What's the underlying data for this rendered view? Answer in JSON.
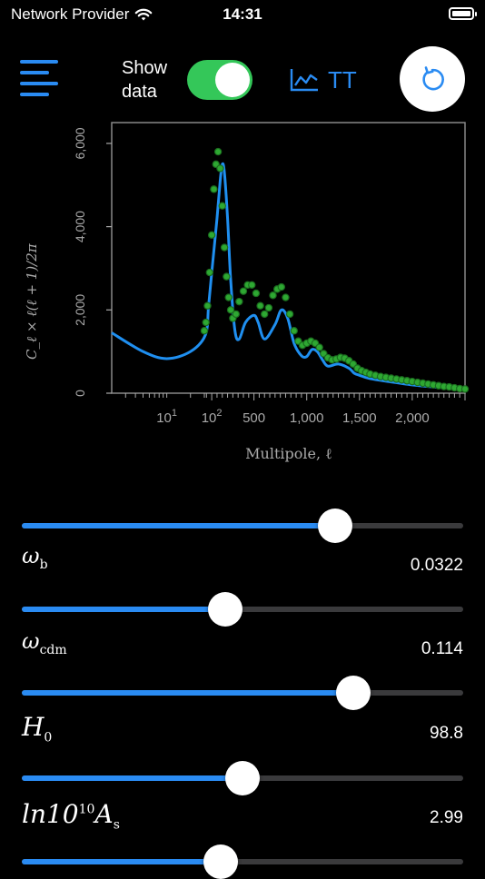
{
  "status": {
    "carrier": "Network Provider",
    "time": "14:31",
    "battery_level": 1.0
  },
  "header": {
    "show_data_label_1": "Show",
    "show_data_label_2": "data",
    "show_data_on": true,
    "spectrum_label": "TT"
  },
  "colors": {
    "accent": "#2a8bf2",
    "toggle_on": "#34c759",
    "data_points": "#2ea832",
    "theory_line": "#1f8ff0"
  },
  "icons": {
    "menu": "hamburger-icon",
    "chart": "line-chart-icon",
    "reset": "reset-icon"
  },
  "chart_data": {
    "type": "scatter",
    "ylabel": "C_ℓ × ℓ(ℓ + 1)/2π",
    "xlabel": "Multipole, ℓ",
    "x_scale": "log up to 30, then linear",
    "xlim": [
      2,
      2500
    ],
    "ylim": [
      0,
      6500
    ],
    "x_ticks": [
      "10¹",
      "10²",
      "500",
      "1,000",
      "1,500",
      "2,000"
    ],
    "y_ticks": [
      "0",
      "2,000",
      "4,000",
      "6,000"
    ],
    "series": [
      {
        "kind": "line",
        "x": [
          2,
          5,
          10,
          20,
          40,
          70,
          100,
          150,
          180,
          200,
          220,
          250,
          280,
          320,
          360,
          420,
          500,
          540,
          600,
          700,
          760,
          820,
          880,
          950,
          1000,
          1050,
          1100,
          1150,
          1200,
          1300,
          1400,
          1450,
          1500,
          1600,
          1800,
          2000,
          2200,
          2500
        ],
        "y": [
          1450,
          1000,
          830,
          1000,
          1400,
          2100,
          2900,
          4200,
          5100,
          5500,
          5300,
          4200,
          2700,
          1500,
          1300,
          1700,
          1870,
          1700,
          1300,
          1650,
          2000,
          1800,
          1200,
          900,
          880,
          1050,
          1000,
          800,
          650,
          700,
          600,
          480,
          430,
          350,
          270,
          200,
          150,
          100
        ]
      },
      {
        "kind": "scatter",
        "x": [
          30,
          45,
          60,
          80,
          100,
          120,
          140,
          160,
          180,
          200,
          220,
          240,
          260,
          280,
          300,
          330,
          360,
          400,
          440,
          480,
          520,
          560,
          600,
          640,
          680,
          720,
          760,
          800,
          840,
          880,
          920,
          960,
          1000,
          1040,
          1080,
          1120,
          1160,
          1200,
          1240,
          1280,
          1320,
          1360,
          1400,
          1440,
          1480,
          1520,
          1560,
          1600,
          1650,
          1700,
          1750,
          1800,
          1850,
          1900,
          1950,
          2000,
          2050,
          2100,
          2150,
          2200,
          2250,
          2300,
          2350,
          2400,
          2450,
          2500
        ],
        "y": [
          1500,
          1700,
          2100,
          2900,
          3800,
          4900,
          5500,
          5800,
          5400,
          4500,
          3500,
          2800,
          2300,
          2000,
          1800,
          1900,
          2200,
          2450,
          2600,
          2600,
          2400,
          2100,
          1900,
          2050,
          2350,
          2500,
          2550,
          2300,
          1900,
          1500,
          1250,
          1150,
          1200,
          1250,
          1200,
          1100,
          950,
          850,
          800,
          820,
          860,
          840,
          780,
          700,
          600,
          540,
          500,
          460,
          430,
          400,
          380,
          360,
          340,
          320,
          300,
          280,
          260,
          240,
          220,
          200,
          180,
          160,
          150,
          130,
          110,
          100
        ]
      }
    ]
  },
  "sliders": [
    {
      "label": "",
      "value_text": "",
      "fraction": 0.71
    },
    {
      "label": "ω",
      "sub": "b",
      "value_text": "0.0322",
      "fraction": 0.46
    },
    {
      "label": "ω",
      "sub": "cdm",
      "value_text": "0.114",
      "fraction": 0.75
    },
    {
      "label": "H",
      "sub": "0",
      "value_text": "98.8",
      "fraction": 0.5
    },
    {
      "label": "ln10",
      "sup": "10",
      "label2": "A",
      "sub": "s",
      "value_text": "2.99",
      "fraction": 0.45
    }
  ]
}
